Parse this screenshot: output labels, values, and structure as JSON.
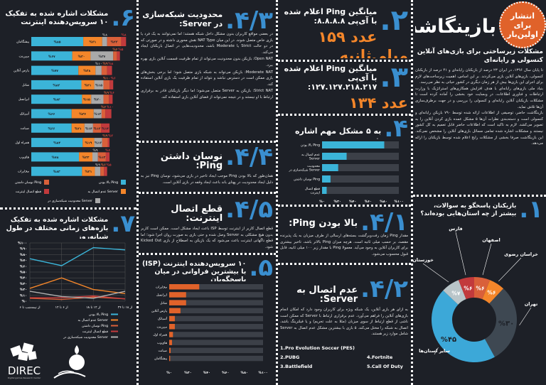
{
  "colors": {
    "background": "#1d2027",
    "accent_blue": "#3a8fd0",
    "bar_cyan": "#3bb4d8",
    "orange": "#f4862a",
    "track": "#3c4048"
  },
  "intro": {
    "title": "بازینگاشت",
    "badge": "انتشار برای اولین‌بار",
    "subtitle": "مشکلات زیرساختی برای بازی‌های آنلاین کنسولی و رایانه‌ای",
    "paragraphs": [
      "تا پایان سال ۱۳۹۶، در ایران ۲۳ درصد از بازیکنان رایانه‌ای و ۴۱ درصد از بازیکنان کنسولی، بازی‌های آنلاین بازی می‌کردند. بر این اساس، اهمیت زیرساخت‌های لازم برای اجرای این بازی‌ها بیش از هر زمان دیگری در کشور حیاتی به نظر می‌رسد.",
      "بنیاد ملی بازی‌های رایانه‌ای با هدف افزایش همکاری‌های استراتژیک با وزارت ارتباطات و فناوری اطلاعات، در وبسایت خود بخشی را آماده کرده است تا مشکلات بازیکنان آنلاین رایانه‌ای و کنسولی را بررسی و در جهت برطرف‌سازی آن‌ها تلاش نماید.",
      "بازینگاشت حاضر، توصیفی از اطلاعات ارائه شده توسط ۷۹۰ بازیکن رایانه‌ای و کنسولی است و دسته‌بندی نظرات آن‌ها ۵ مشکل عمده بازی کردن آنلاین را به تصویر می‌کشد. لازم به تاکید است که اطلاعات حاضر قابل تعمیم به کل کشور نیستند و مشکلات اشاره شده تمامی مسائل بازی‌های آنلاین را مشخص نمی‌کند. این بازینگاشت صرفا بخشی از مشکلات رایج اعلام شده توسط بازیکنان را ارائه می‌دهد."
    ]
  },
  "s1": {
    "num": "۱.",
    "title": "بازیکنان پاسخگو به سوالات، بیشتر از چه استان‌هایی بوده‌اند؟"
  },
  "s2": {
    "num": "۲.",
    "title": "میانگین Ping اعلام شده با آی‌پی ۸.۸.۸.۸:",
    "value": "عدد ۱۵۹ میلی‌ثانیه"
  },
  "s3": {
    "num": "۳.",
    "title": "میانگین Ping اعلام شده با آی‌پی ۱۲۷.۱۲۷.۲۱۸.۲۱۷:",
    "value": "عدد ۱۳۴ میلی‌ثانیه"
  },
  "s4": {
    "num": "۴.",
    "title": "به ۵ مشکل مهم اشاره شده"
  },
  "s41": {
    "num": "۴/۱.",
    "title": "بالا بودن Ping:",
    "text": "مقدار Ping زمان رفت‌وبرگشت بسته‌های ارسالی از طرف میزبان به یک پذیرنده مقصد، بر حسب میلی ثانیه است. هرچه میزان Ping بالاتر باشد، تاخیر بیشتری برای کاربران آنلاین به وجود می‌آید. معمولا Ping با مقدار زیر ۱۰۰ میلی ثانیه، قابل قبول محسوب می‌شود."
  },
  "s42": {
    "num": "۴/۲.",
    "title": "عدم اتصال به Server:",
    "text": "به ازای هر بازی آنلاین، یک شبکه ویژه برای کاربران وجود دارد که امکان انجام بازی‌های آنلاین را فراهم می‌آورد. عدم برقراری ارتباط با Server که ممکن است ناشی از قطع ارتباط از سوی میزبان (مثلا به علت تحریم) و یا فیلترینگ باشد، اتصال به شبکه را مختل می‌کند. ۵ بازی با بیشترین مشکل عدم اتصال به Server شامل موارد زیر هستند.",
    "games": [
      "1.Pro Evolution Soccer (PES)",
      "2.PUBG",
      "3.Battlefield",
      "4.Fortnite",
      "5.Call Of Duty"
    ]
  },
  "s43": {
    "num": "۴/۳.",
    "title": "محدودیت شبکه‌سازی در Server:",
    "paragraphs": [
      "در بعضی مواقع کاربران بدون مشکل داخل شبکه هستند؛ اما نمی‌توانند به یک فرد یا بازی خاص متصل شوند. در این میان NAT Type نقش محوری داشته و در صورتی که در دو حالت Strict یا Moderate باشد، محدودیت‌هایی در اتصال بازیکنان ایجاد می‌کند.",
      "Open NAT: بازیکن بدون محدودیت می‌تواند از تمام ظرفیت قسمت آنلاین بازی بهره ببرد.",
      "Moderate NAT: بازیکن می‌تواند به شبکه بازی متصل شود؛ اما برخی بخش‌های بازی ممکن است در دسترس نباشد و نتواند از تمام ظرفیت یک بازی آنلاین استفاده کند.",
      "Strict NAT: بازیکن به Server متصل می‌شود؛ اما دیگر بازیکنان قادر به برقراری ارتباط با او نیستند و در نتیجه نمی‌تواند از فضای آنلاین بازی استفاده کند."
    ]
  },
  "s44": {
    "num": "۴/۴.",
    "title": "نوسان داشتن Ping:",
    "text": "همان‌طور که بالا بودن Ping موجب ایجاد تاخیر در بازی می‌شود، نوسان Ping نیز به دلیل ایجاد محدودیت در پهنای باند باعث ایجاد وقفه در بازی آنلاین است."
  },
  "s45": {
    "num": "۴/۵.",
    "title": "قطع اتصال اینترنت:",
    "text": "قطع اتصال کاربر از اینترنت توسط ISP باعث ایجاد مشکل است. ممکن است کاربر بدون هیچ مشکلی به Server وصل شده و حتی بازی به صورت روان اجرا شود؛ اما قطع ناگهانی اینترنت باعث می‌شود که یک بازیکن به اصطلاح از بازی Kicked Out شود."
  },
  "s5": {
    "num": "۵.",
    "title": "۱۰ سرویس‌دهنده اینترنت (ISP) با بیشترین فراوانی در میان پاسخگویان"
  },
  "s6": {
    "num": "۶.",
    "title": "مشکلات اشاره شده به تفکیک ۱۰ سرویس‌دهنده اینترنت"
  },
  "s7": {
    "num": "۷.",
    "title": "مشکلات اشاره شده به تفکیک بازه‌های زمانی مختلف در طول شبانه‌روز"
  },
  "logos": {
    "direc": "DIREC",
    "direc_sub": "Digital games Research Center"
  },
  "chart_data": [
    {
      "id": "s1",
      "type": "pie",
      "donut": true,
      "slices": [
        {
          "label": "اصفهان",
          "value": 6,
          "color": "#d9603a"
        },
        {
          "label": "خراسان رضوی",
          "value": 6,
          "color": "#f4862a"
        },
        {
          "label": "تهران",
          "value": 30,
          "color": "#3e4852"
        },
        {
          "label": "سایر استان‌ها",
          "value": 45,
          "color": "#3ca8d8"
        },
        {
          "label": "خوزستان",
          "value": 7,
          "color": "#b9c5c9"
        },
        {
          "label": "فارس",
          "value": 6,
          "color": "#c23a3c"
        }
      ]
    },
    {
      "id": "s4",
      "type": "bar",
      "orientation": "horizontal",
      "categories": [
        "بالا بودن Ping",
        "عدم اتصال به Server",
        "محدودیت شبکه‌سازی در Server",
        "نوسان داشتن Ping",
        "قطع اتصال اینترنت"
      ],
      "values": [
        81,
        32,
        21,
        11,
        6
      ],
      "xlim": [
        0,
        100
      ],
      "ticks": [
        "%۰",
        "%۲۰",
        "%۴۰",
        "%۶۰",
        "%۸۰",
        "%۱۰۰"
      ],
      "color": "#3bb4d8"
    },
    {
      "id": "s5",
      "type": "bar",
      "orientation": "horizontal",
      "categories": [
        "مخابرات",
        "ایرانسل",
        "شاتل",
        "پارس آنلاین",
        "آسیاتک",
        "مبین‌نت",
        "همراه اول",
        "های‌وب",
        "صبانت",
        "پیشگامان"
      ],
      "values": [
        32,
        18,
        18,
        12,
        6,
        6,
        4,
        3,
        1.5,
        1
      ],
      "xlim": [
        0,
        100
      ],
      "ticks": [
        "%۰",
        "%۲۰",
        "%۴۰",
        "%۶۰",
        "%۸۰",
        "%۱۰۰"
      ],
      "color": "#e0622a"
    },
    {
      "id": "s6",
      "type": "bar",
      "stacked": true,
      "orientation": "horizontal",
      "categories": [
        "پیشگامان",
        "مبین‌نت",
        "پارس آنلاین",
        "شاتل",
        "ایرانسل",
        "آسیاتک",
        "صبانت",
        "همراه اول",
        "های‌وب",
        "مخابرات"
      ],
      "series": [
        {
          "name": "بالا بودن Ping",
          "color": "#3bb4d8",
          "values": [
            85,
            67,
            77,
            82,
            83,
            66,
            66,
            84,
            78,
            83
          ]
        },
        {
          "name": "عدم اتصال به Server",
          "color": "#f4862a",
          "values": [
            31,
            30,
            28,
            21,
            15,
            36,
            21,
            19,
            22,
            21
          ]
        },
        {
          "name": "محدودیت شبکه‌سازی در Server",
          "color": "#a9a9a9",
          "values": [
            8,
            37,
            10,
            15,
            20,
            13,
            14,
            13,
            9,
            9
          ]
        },
        {
          "name": "نوسان داشتن Ping",
          "color": "#d9603a",
          "values": [
            23,
            6,
            9,
            10,
            9,
            6,
            13,
            9,
            13,
            6
          ]
        },
        {
          "name": "قطع اتصال اینترنت",
          "color": "#c23a3c",
          "values": [
            8,
            5,
            8,
            6,
            6,
            10,
            14,
            3,
            6,
            5
          ]
        }
      ]
    },
    {
      "id": "s7",
      "type": "line",
      "categories": [
        "از نیمه‌شب تا ۶",
        "از ۶ تا ۱۲",
        "از ۱۲ تا ۱۸",
        "از ۱۸ تا ۲۴"
      ],
      "ylim": [
        0,
        100
      ],
      "yticks": [
        "%۰",
        "%۱۰",
        "%۲۰",
        "%۳۰",
        "%۴۰",
        "%۵۰",
        "%۶۰",
        "%۷۰",
        "%۸۰",
        "%۹۰",
        "%۱۰۰"
      ],
      "grid": true,
      "legend": "bottom",
      "series": [
        {
          "name": "بالا بودن Ping",
          "color": "#3bb4d8",
          "values": [
            73,
            61,
            92,
            88
          ]
        },
        {
          "name": "عدم اتصال به Server",
          "color": "#f4862a",
          "values": [
            22,
            40,
            20,
            13
          ]
        },
        {
          "name": "نوسان داشتن Ping",
          "color": "#d9603a",
          "values": [
            5,
            3,
            7,
            4
          ]
        },
        {
          "name": "قطع اتصال اینترنت",
          "color": "#c23a3c",
          "values": [
            6,
            6,
            9,
            4
          ]
        },
        {
          "name": "محدودیت شبکه‌سازی در Server",
          "color": "#b0b0b0",
          "values": [
            17,
            8,
            5,
            17
          ]
        }
      ]
    }
  ]
}
